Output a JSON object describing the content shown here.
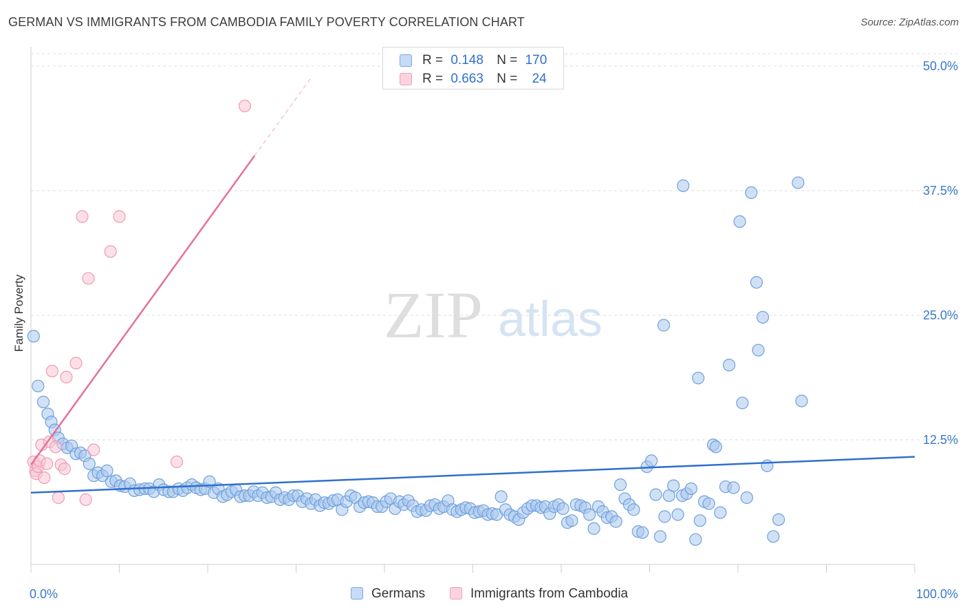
{
  "title": "GERMAN VS IMMIGRANTS FROM CAMBODIA FAMILY POVERTY CORRELATION CHART",
  "source": "Source: ZipAtlas.com",
  "watermark": {
    "zip": "ZIP",
    "atlas": "atlas"
  },
  "legend": {
    "rows": [
      {
        "r_label": "R =",
        "r_value": "0.148",
        "n_label": "N =",
        "n_value": "170",
        "color": "#a9c8ee"
      },
      {
        "r_label": "R =",
        "r_value": "0.663",
        "n_label": "N =",
        "n_value": "24",
        "color": "#f6b8ca"
      }
    ]
  },
  "colors": {
    "germans_fill": "#a9c8ee",
    "germans_stroke": "#6fa0da",
    "germans_line": "#2f6fce",
    "cambodia_fill": "#f9c6d4",
    "cambodia_stroke": "#ee9ab3",
    "cambodia_line": "#e66f98",
    "axis_text": "#3a78c9",
    "grid": "#dcdcdc"
  },
  "chart_data": {
    "type": "scatter",
    "title": "GERMAN VS IMMIGRANTS FROM CAMBODIA FAMILY POVERTY CORRELATION CHART",
    "xlabel": "",
    "ylabel": "Family Poverty",
    "xlim": [
      0,
      100
    ],
    "ylim": [
      0,
      50
    ],
    "x_tick_labels": [
      "0.0%",
      "100.0%"
    ],
    "y_ticks": [
      12.5,
      25.0,
      37.5,
      50.0
    ],
    "y_tick_labels": [
      "12.5%",
      "25.0%",
      "37.5%",
      "50.0%"
    ],
    "grid": true,
    "legend_position": "bottom",
    "series": [
      {
        "name": "Germans",
        "r": 0.148,
        "n": 170,
        "trend": {
          "x": [
            0,
            100
          ],
          "y": [
            7.2,
            10.8
          ]
        },
        "points": [
          [
            0.3,
            22.9
          ],
          [
            0.8,
            17.9
          ],
          [
            1.4,
            16.3
          ],
          [
            1.9,
            15.1
          ],
          [
            2.3,
            14.3
          ],
          [
            2.7,
            13.5
          ],
          [
            3.1,
            12.7
          ],
          [
            3.6,
            12.1
          ],
          [
            4.1,
            11.7
          ],
          [
            4.6,
            11.9
          ],
          [
            5.1,
            11.1
          ],
          [
            5.6,
            11.2
          ],
          [
            6.1,
            10.9
          ],
          [
            6.6,
            10.1
          ],
          [
            7.1,
            8.9
          ],
          [
            7.6,
            9.2
          ],
          [
            8.1,
            8.9
          ],
          [
            8.6,
            9.4
          ],
          [
            9.1,
            8.3
          ],
          [
            9.6,
            8.4
          ],
          [
            10.1,
            7.9
          ],
          [
            10.6,
            7.8
          ],
          [
            11.2,
            8.1
          ],
          [
            11.7,
            7.4
          ],
          [
            12.3,
            7.5
          ],
          [
            12.9,
            7.6
          ],
          [
            13.4,
            7.6
          ],
          [
            13.9,
            7.3
          ],
          [
            14.5,
            8.0
          ],
          [
            15.0,
            7.5
          ],
          [
            15.6,
            7.3
          ],
          [
            16.1,
            7.3
          ],
          [
            16.7,
            7.6
          ],
          [
            17.2,
            7.4
          ],
          [
            17.7,
            7.7
          ],
          [
            18.2,
            8.0
          ],
          [
            18.7,
            7.7
          ],
          [
            19.2,
            7.5
          ],
          [
            19.7,
            7.6
          ],
          [
            20.2,
            8.3
          ],
          [
            20.7,
            7.2
          ],
          [
            21.2,
            7.6
          ],
          [
            21.7,
            6.8
          ],
          [
            22.2,
            7.0
          ],
          [
            22.7,
            7.3
          ],
          [
            23.2,
            7.5
          ],
          [
            23.7,
            6.8
          ],
          [
            24.2,
            6.9
          ],
          [
            24.7,
            6.9
          ],
          [
            25.2,
            7.3
          ],
          [
            25.7,
            6.9
          ],
          [
            26.2,
            7.2
          ],
          [
            26.7,
            6.7
          ],
          [
            27.2,
            6.8
          ],
          [
            27.7,
            7.2
          ],
          [
            28.2,
            6.5
          ],
          [
            28.7,
            6.7
          ],
          [
            29.2,
            6.5
          ],
          [
            29.7,
            6.9
          ],
          [
            30.2,
            6.9
          ],
          [
            30.7,
            6.3
          ],
          [
            31.2,
            6.6
          ],
          [
            31.7,
            6.1
          ],
          [
            32.2,
            6.5
          ],
          [
            32.7,
            5.9
          ],
          [
            33.2,
            6.2
          ],
          [
            33.7,
            6.1
          ],
          [
            34.2,
            6.4
          ],
          [
            34.7,
            6.5
          ],
          [
            35.2,
            5.5
          ],
          [
            35.7,
            6.3
          ],
          [
            36.2,
            6.9
          ],
          [
            36.7,
            6.7
          ],
          [
            37.2,
            5.8
          ],
          [
            37.7,
            6.2
          ],
          [
            38.2,
            6.3
          ],
          [
            38.7,
            6.2
          ],
          [
            39.2,
            5.8
          ],
          [
            39.7,
            5.8
          ],
          [
            40.2,
            6.3
          ],
          [
            40.7,
            6.6
          ],
          [
            41.2,
            5.6
          ],
          [
            41.7,
            6.3
          ],
          [
            42.2,
            6.0
          ],
          [
            42.7,
            6.4
          ],
          [
            43.2,
            5.9
          ],
          [
            43.7,
            5.3
          ],
          [
            44.2,
            5.5
          ],
          [
            44.7,
            5.4
          ],
          [
            45.2,
            5.9
          ],
          [
            45.7,
            6.0
          ],
          [
            46.2,
            5.6
          ],
          [
            46.7,
            5.8
          ],
          [
            47.2,
            6.4
          ],
          [
            47.7,
            5.5
          ],
          [
            48.2,
            5.3
          ],
          [
            48.7,
            5.5
          ],
          [
            49.2,
            5.7
          ],
          [
            49.7,
            5.6
          ],
          [
            50.2,
            5.2
          ],
          [
            50.7,
            5.3
          ],
          [
            51.2,
            5.4
          ],
          [
            51.7,
            5.0
          ],
          [
            52.2,
            5.1
          ],
          [
            52.7,
            5.0
          ],
          [
            53.2,
            6.8
          ],
          [
            53.7,
            5.5
          ],
          [
            54.2,
            5.0
          ],
          [
            54.7,
            4.8
          ],
          [
            55.2,
            4.5
          ],
          [
            55.7,
            5.2
          ],
          [
            56.2,
            5.6
          ],
          [
            56.7,
            5.9
          ],
          [
            57.2,
            5.9
          ],
          [
            57.7,
            5.7
          ],
          [
            58.2,
            5.8
          ],
          [
            58.7,
            5.1
          ],
          [
            59.2,
            5.8
          ],
          [
            59.7,
            6.0
          ],
          [
            60.2,
            5.6
          ],
          [
            60.7,
            4.2
          ],
          [
            61.2,
            4.4
          ],
          [
            61.7,
            6.0
          ],
          [
            62.2,
            5.9
          ],
          [
            62.7,
            5.7
          ],
          [
            63.2,
            5.0
          ],
          [
            63.7,
            3.6
          ],
          [
            64.2,
            5.8
          ],
          [
            64.7,
            5.3
          ],
          [
            65.2,
            4.7
          ],
          [
            65.7,
            4.8
          ],
          [
            66.2,
            4.3
          ],
          [
            66.7,
            8.0
          ],
          [
            67.2,
            6.6
          ],
          [
            67.7,
            6.0
          ],
          [
            68.2,
            5.5
          ],
          [
            68.7,
            3.3
          ],
          [
            69.2,
            3.2
          ],
          [
            69.7,
            9.8
          ],
          [
            70.2,
            10.4
          ],
          [
            70.7,
            7.0
          ],
          [
            71.2,
            2.8
          ],
          [
            71.7,
            4.8
          ],
          [
            72.2,
            6.9
          ],
          [
            72.7,
            7.9
          ],
          [
            73.2,
            5.0
          ],
          [
            73.7,
            6.9
          ],
          [
            74.2,
            7.1
          ],
          [
            74.7,
            7.6
          ],
          [
            75.2,
            2.5
          ],
          [
            75.7,
            4.4
          ],
          [
            76.2,
            6.3
          ],
          [
            76.7,
            6.1
          ],
          [
            77.2,
            12.0
          ],
          [
            77.5,
            11.8
          ],
          [
            78.0,
            5.2
          ],
          [
            78.6,
            7.8
          ],
          [
            79.5,
            7.7
          ],
          [
            80.2,
            34.4
          ],
          [
            80.5,
            16.2
          ],
          [
            81.0,
            6.7
          ],
          [
            81.5,
            37.3
          ],
          [
            82.1,
            28.3
          ],
          [
            82.8,
            24.8
          ],
          [
            83.3,
            9.9
          ],
          [
            84.0,
            2.8
          ],
          [
            84.6,
            4.5
          ],
          [
            86.8,
            38.3
          ],
          [
            87.2,
            16.4
          ],
          [
            75.5,
            18.7
          ],
          [
            73.8,
            38.0
          ],
          [
            71.6,
            24.0
          ],
          [
            79.0,
            20.0
          ],
          [
            82.3,
            21.5
          ]
        ]
      },
      {
        "name": "Immigrants from Cambodia",
        "r": 0.663,
        "n": 24,
        "trend": {
          "x": [
            0,
            25.3
          ],
          "y": [
            10.0,
            41.0
          ],
          "dashed_to": {
            "x": [
              25.3,
              31.6
            ],
            "y": [
              41.0,
              48.7
            ]
          }
        },
        "points": [
          [
            0.3,
            10.3
          ],
          [
            0.5,
            9.4
          ],
          [
            0.6,
            9.1
          ],
          [
            0.8,
            9.8
          ],
          [
            1.0,
            10.4
          ],
          [
            1.2,
            12.0
          ],
          [
            1.5,
            8.7
          ],
          [
            1.8,
            10.1
          ],
          [
            2.1,
            12.3
          ],
          [
            2.4,
            19.4
          ],
          [
            2.8,
            11.8
          ],
          [
            3.1,
            6.7
          ],
          [
            3.4,
            10.0
          ],
          [
            3.8,
            9.6
          ],
          [
            4.0,
            18.8
          ],
          [
            5.1,
            20.2
          ],
          [
            5.8,
            34.9
          ],
          [
            6.2,
            6.5
          ],
          [
            6.5,
            28.7
          ],
          [
            7.1,
            11.5
          ],
          [
            9.0,
            31.4
          ],
          [
            10.0,
            34.9
          ],
          [
            16.5,
            10.3
          ],
          [
            24.2,
            46.0
          ]
        ]
      }
    ]
  }
}
